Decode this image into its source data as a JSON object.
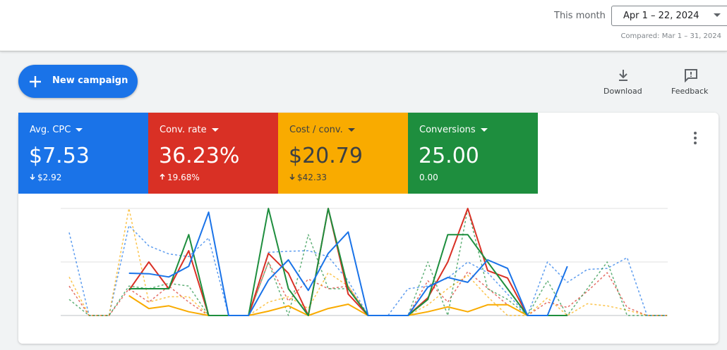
{
  "header": {
    "period_label": "This month",
    "date_range": "Apr 1 – 22, 2024",
    "compared": "Compared: Mar 1 – 31, 2024"
  },
  "toolbar": {
    "new_campaign": "New campaign",
    "download": "Download",
    "feedback": "Feedback"
  },
  "metrics": [
    {
      "label": "Avg. CPC",
      "value": "$7.53",
      "change": "$2.92"
    },
    {
      "label": "Conv. rate",
      "value": "36.23%",
      "change": "19.68%"
    },
    {
      "label": "Cost / conv.",
      "value": "$20.79",
      "change": "$42.33"
    },
    {
      "label": "Conversions",
      "value": "25.00",
      "change": "0.00"
    }
  ],
  "chart_data": {
    "type": "line",
    "ylim": [
      0,
      2
    ],
    "yticks": [
      0,
      1,
      2
    ],
    "grid": true,
    "series": [
      {
        "color": "#1a73e8",
        "dashed": true,
        "values": [
          1.55,
          0,
          0,
          1.68,
          1.3,
          1.15,
          1.1,
          1.45,
          0,
          0,
          1.18,
          1.2,
          1.21,
          1.1,
          0.65,
          0,
          0,
          0.5,
          0.55,
          0.7,
          1.0,
          0.8,
          0.4,
          0,
          1.0,
          0.62,
          0.86,
          0.88,
          1.08,
          0,
          0
        ]
      },
      {
        "color": "#d93025",
        "dashed": true,
        "values": [
          0.55,
          0,
          0,
          0.5,
          0.25,
          0.55,
          0.25,
          0,
          0,
          0,
          1.0,
          0.27,
          0.68,
          0.5,
          0.55,
          0,
          0,
          0,
          0.65,
          0.25,
          0.82,
          0.51,
          0.2,
          0,
          0.25,
          0.15,
          0.45,
          0.8,
          0.15,
          0,
          0
        ]
      },
      {
        "color": "#f9ab00",
        "dashed": true,
        "values": [
          0.72,
          0,
          0,
          2.0,
          0.25,
          0.35,
          0.35,
          0,
          0,
          0,
          0.25,
          0.35,
          0.13,
          0.8,
          0.55,
          0,
          0,
          0,
          0.2,
          0.5,
          0.75,
          0.35,
          0,
          0,
          0.33,
          0,
          0.22,
          0.18,
          0.1,
          0,
          0
        ]
      },
      {
        "color": "#1e8e3e",
        "dashed": true,
        "values": [
          0.3,
          0,
          0,
          0.55,
          0.5,
          0.6,
          0.55,
          0,
          0,
          0,
          1.0,
          0,
          1.51,
          0.5,
          0.5,
          0,
          0,
          0,
          1.0,
          0,
          2.0,
          0.5,
          0.3,
          0,
          0.65,
          0,
          0.5,
          1.0,
          0,
          0,
          0
        ]
      },
      {
        "color": "#f9ab00",
        "dashed": false,
        "values": [
          null,
          null,
          null,
          0.37,
          0.13,
          0.18,
          0.07,
          0,
          0,
          0,
          0.08,
          0.18,
          0,
          0.13,
          0.21,
          0,
          0,
          0,
          0.07,
          0.16,
          0.07,
          0.2,
          0.2,
          0,
          0,
          0,
          null,
          null,
          null,
          null,
          null
        ]
      },
      {
        "color": "#d93025",
        "dashed": false,
        "values": [
          null,
          null,
          null,
          0.47,
          1.0,
          0.5,
          1.21,
          0,
          0,
          0,
          1.16,
          0.79,
          0,
          2.0,
          0.4,
          0,
          0,
          0,
          0.33,
          1.0,
          2.0,
          0.84,
          0.7,
          0,
          0,
          0,
          null,
          null,
          null,
          null,
          null
        ]
      },
      {
        "color": "#1e8e3e",
        "dashed": false,
        "values": [
          null,
          null,
          null,
          0.5,
          0.5,
          0.5,
          1.51,
          0,
          0,
          0,
          2.0,
          0.5,
          0,
          2.0,
          0.5,
          0,
          0,
          0,
          0.3,
          1.51,
          1.51,
          1.0,
          0.5,
          0,
          0,
          0,
          null,
          null,
          null,
          null,
          null
        ]
      },
      {
        "color": "#1a73e8",
        "dashed": false,
        "values": [
          null,
          null,
          null,
          0.79,
          0.78,
          0.72,
          0.92,
          1.93,
          0,
          0,
          0.66,
          1.04,
          0.47,
          1.16,
          1.56,
          0,
          0,
          0,
          0.53,
          0.71,
          0.62,
          1.04,
          0.88,
          0,
          0,
          0.92,
          null,
          null,
          null,
          null,
          null
        ]
      }
    ]
  }
}
